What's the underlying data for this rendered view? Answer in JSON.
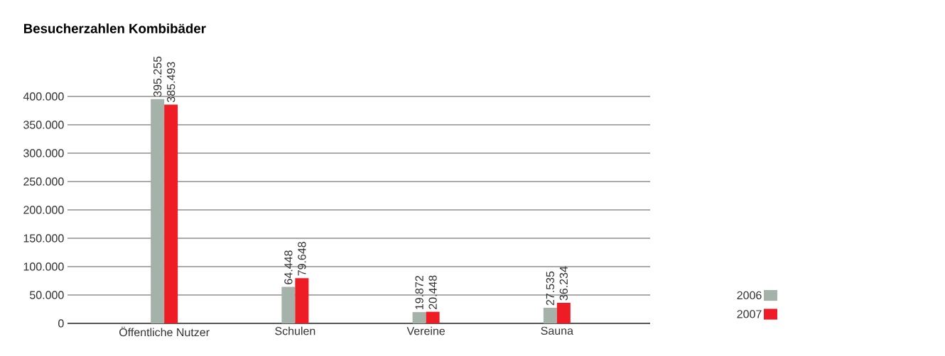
{
  "chart_data": {
    "type": "bar",
    "title": "Besucherzahlen Kombibäder",
    "categories": [
      "Öffentliche Nutzer",
      "Schulen",
      "Vereine",
      "Sauna"
    ],
    "series": [
      {
        "name": "2006",
        "color": "#a5b2aa",
        "values": [
          395255,
          64448,
          19872,
          27535
        ],
        "value_labels": [
          "395.255",
          "64.448",
          "19.872",
          "27.535"
        ]
      },
      {
        "name": "2007",
        "color": "#ee1c25",
        "values": [
          385493,
          79648,
          20448,
          36234
        ],
        "value_labels": [
          "385.493",
          "79.648",
          "20.448",
          "36.234"
        ]
      }
    ],
    "ylim": [
      0,
      400000
    ],
    "yticks": [
      {
        "value": 0,
        "label": "0"
      },
      {
        "value": 50000,
        "label": "50.000"
      },
      {
        "value": 100000,
        "label": "100.000"
      },
      {
        "value": 150000,
        "label": "150.000"
      },
      {
        "value": 200000,
        "label": "200.000"
      },
      {
        "value": 250000,
        "label": "250.000"
      },
      {
        "value": 300000,
        "label": "300.000"
      },
      {
        "value": 350000,
        "label": "350.000"
      },
      {
        "value": 400000,
        "label": "400.000"
      }
    ],
    "grid": "y",
    "legend": "bottom right"
  }
}
